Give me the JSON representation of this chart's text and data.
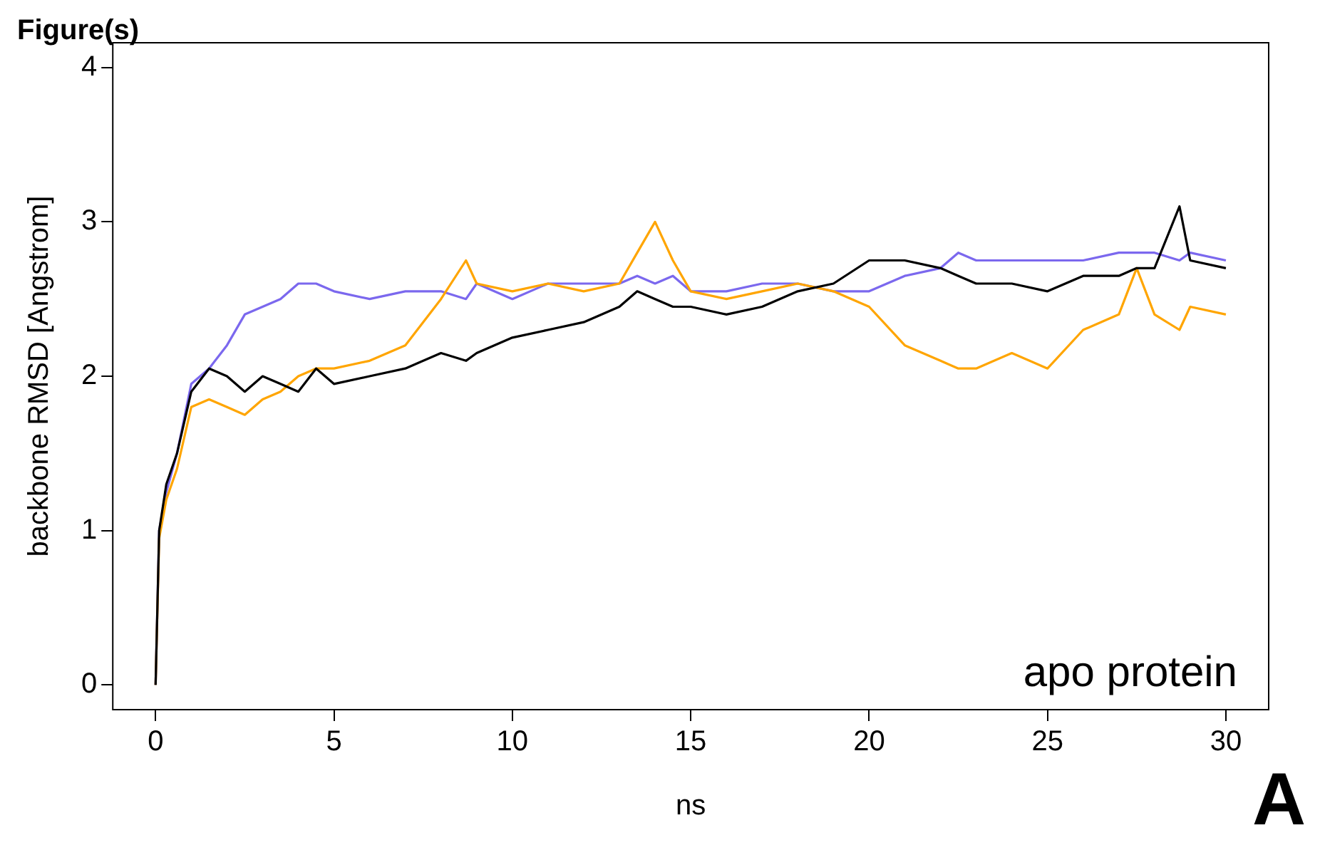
{
  "chart_data": {
    "type": "line",
    "xlabel": "ns",
    "ylabel": "backbone RMSD [Angstrom]",
    "annotations": [
      "apo protein",
      "Figure(s)",
      "A"
    ],
    "x": [
      0,
      0.1,
      0.3,
      0.6,
      1,
      1.5,
      2,
      2.5,
      3,
      3.5,
      4,
      4.5,
      5,
      6,
      7,
      8,
      8.7,
      9,
      10,
      11,
      12,
      13,
      13.5,
      14,
      14.5,
      15,
      16,
      17,
      18,
      19,
      20,
      21,
      22,
      22.5,
      23,
      24,
      25,
      26,
      27,
      27.5,
      28,
      28.7,
      29,
      30
    ],
    "series": [
      {
        "color": "#000000",
        "values": [
          0,
          1.0,
          1.3,
          1.5,
          1.9,
          2.05,
          2.0,
          1.9,
          2.0,
          1.95,
          1.9,
          2.05,
          1.95,
          2.0,
          2.05,
          2.15,
          2.1,
          2.15,
          2.25,
          2.3,
          2.35,
          2.45,
          2.55,
          2.5,
          2.45,
          2.45,
          2.4,
          2.45,
          2.55,
          2.6,
          2.75,
          2.75,
          2.7,
          2.65,
          2.6,
          2.6,
          2.55,
          2.65,
          2.65,
          2.7,
          2.7,
          3.1,
          2.75,
          2.7
        ]
      },
      {
        "color": "#ffa500",
        "values": [
          0,
          0.95,
          1.2,
          1.4,
          1.8,
          1.85,
          1.8,
          1.75,
          1.85,
          1.9,
          2.0,
          2.05,
          2.05,
          2.1,
          2.2,
          2.5,
          2.75,
          2.6,
          2.55,
          2.6,
          2.55,
          2.6,
          2.8,
          3.0,
          2.75,
          2.55,
          2.5,
          2.55,
          2.6,
          2.55,
          2.45,
          2.2,
          2.1,
          2.05,
          2.05,
          2.15,
          2.05,
          2.3,
          2.4,
          2.7,
          2.4,
          2.3,
          2.45,
          2.4
        ]
      },
      {
        "color": "#7b68ee",
        "values": [
          0,
          1.0,
          1.25,
          1.5,
          1.95,
          2.05,
          2.2,
          2.4,
          2.45,
          2.5,
          2.6,
          2.6,
          2.55,
          2.5,
          2.55,
          2.55,
          2.5,
          2.6,
          2.5,
          2.6,
          2.6,
          2.6,
          2.65,
          2.6,
          2.65,
          2.55,
          2.55,
          2.6,
          2.6,
          2.55,
          2.55,
          2.65,
          2.7,
          2.8,
          2.75,
          2.75,
          2.75,
          2.75,
          2.8,
          2.8,
          2.8,
          2.75,
          2.8,
          2.75
        ]
      }
    ],
    "xlim": [
      -1.2,
      31.2
    ],
    "xticks": [
      0,
      5,
      10,
      15,
      20,
      25,
      30
    ],
    "ylim": [
      -0.16,
      4.16
    ],
    "yticks": [
      0,
      1,
      2,
      3,
      4
    ],
    "marker": "none",
    "line_style": "solid"
  }
}
